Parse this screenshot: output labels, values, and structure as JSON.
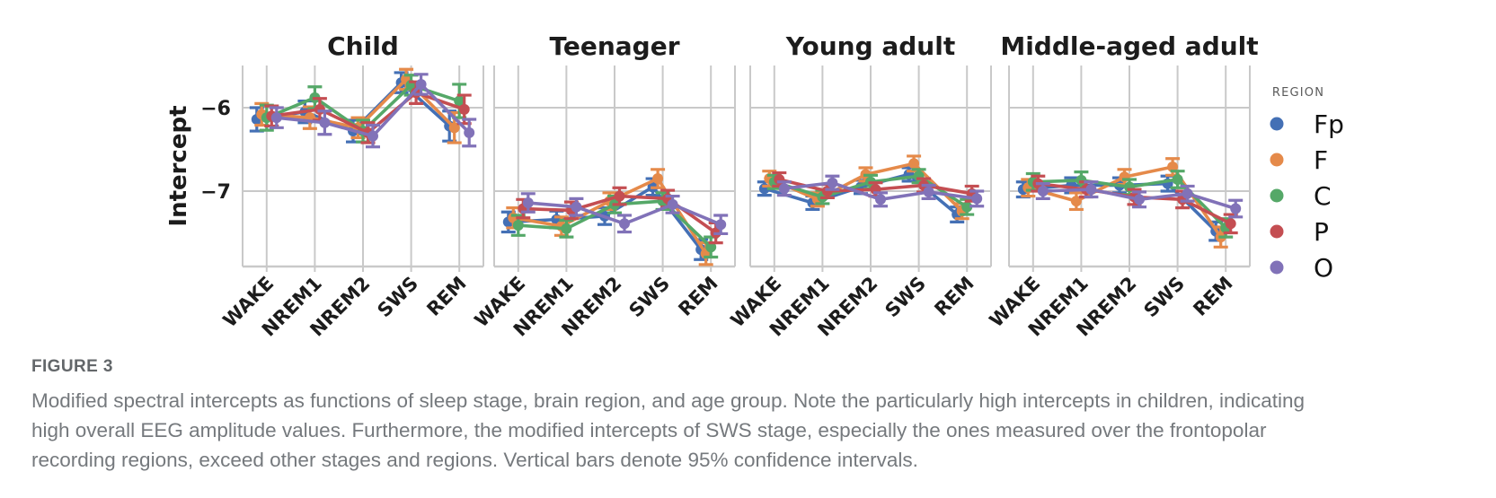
{
  "figure": {
    "label": "FIGURE 3",
    "caption_lines": [
      "Modified spectral intercepts as functions of sleep stage, brain region, and age group. Note the particularly high intercepts in children, indicating",
      "high overall EEG amplitude values. Furthermore, the modified intercepts of SWS stage, especially the ones measured over the frontopolar",
      "recording regions, exceed other stages and regions. Vertical bars denote 95% confidence intervals."
    ]
  },
  "chart_data": {
    "type": "line",
    "subtype": "point-plot-with-error-bars",
    "error_bars": "95% confidence intervals",
    "categories": [
      "WAKE",
      "NREM1",
      "NREM2",
      "SWS",
      "REM"
    ],
    "x_tick_rotation": 45,
    "xlabel": "",
    "ylabel": "Intercept",
    "yticks": [
      "−6",
      "−7"
    ],
    "ytick_values": [
      -6,
      -7
    ],
    "ylim": [
      -7.9,
      -5.5
    ],
    "grid": true,
    "legend": {
      "title": "REGION",
      "position": "right",
      "entries": [
        {
          "label": "Fp",
          "color": "#4470b5"
        },
        {
          "label": "F",
          "color": "#e58a4a"
        },
        {
          "label": "C",
          "color": "#55a868"
        },
        {
          "label": "P",
          "color": "#c44e52"
        },
        {
          "label": "O",
          "color": "#8172b8"
        }
      ]
    },
    "facets": [
      {
        "title": "Child",
        "series": [
          {
            "name": "Fp",
            "values": [
              -6.14,
              -6.05,
              -6.28,
              -5.7,
              -6.22
            ],
            "ci": [
              0.14,
              0.13,
              0.13,
              0.12,
              0.18
            ]
          },
          {
            "name": "F",
            "values": [
              -6.08,
              -6.12,
              -6.24,
              -5.66,
              -6.24
            ],
            "ci": [
              0.13,
              0.13,
              0.12,
              0.12,
              0.18
            ]
          },
          {
            "name": "C",
            "values": [
              -6.12,
              -5.88,
              -6.28,
              -5.73,
              -5.92
            ],
            "ci": [
              0.15,
              0.13,
              0.13,
              0.12,
              0.2
            ]
          },
          {
            "name": "P",
            "values": [
              -6.1,
              -6.02,
              -6.3,
              -5.82,
              -6.02
            ],
            "ci": [
              0.12,
              0.13,
              0.12,
              0.13,
              0.17
            ]
          },
          {
            "name": "O",
            "values": [
              -6.12,
              -6.18,
              -6.34,
              -5.72,
              -6.3
            ],
            "ci": [
              0.12,
              0.14,
              0.13,
              0.12,
              0.16
            ]
          }
        ]
      },
      {
        "title": "Teenager",
        "series": [
          {
            "name": "Fp",
            "values": [
              -7.37,
              -7.34,
              -7.3,
              -6.95,
              -7.7
            ],
            "ci": [
              0.12,
              0.1,
              0.1,
              0.1,
              0.12
            ]
          },
          {
            "name": "F",
            "values": [
              -7.32,
              -7.42,
              -7.12,
              -6.85,
              -7.75
            ],
            "ci": [
              0.12,
              0.11,
              0.1,
              0.11,
              0.13
            ]
          },
          {
            "name": "C",
            "values": [
              -7.41,
              -7.45,
              -7.16,
              -7.12,
              -7.67
            ],
            "ci": [
              0.12,
              0.1,
              0.1,
              0.1,
              0.12
            ]
          },
          {
            "name": "P",
            "values": [
              -7.21,
              -7.23,
              -7.06,
              -7.09,
              -7.5
            ],
            "ci": [
              0.11,
              0.1,
              0.1,
              0.1,
              0.12
            ]
          },
          {
            "name": "O",
            "values": [
              -7.14,
              -7.19,
              -7.39,
              -7.16,
              -7.4
            ],
            "ci": [
              0.11,
              0.1,
              0.1,
              0.1,
              0.11
            ]
          }
        ]
      },
      {
        "title": "Young adult",
        "series": [
          {
            "name": "Fp",
            "values": [
              -6.97,
              -7.14,
              -6.95,
              -6.8,
              -7.28
            ],
            "ci": [
              0.08,
              0.08,
              0.08,
              0.08,
              0.09
            ]
          },
          {
            "name": "F",
            "values": [
              -6.85,
              -7.1,
              -6.8,
              -6.67,
              -7.24
            ],
            "ci": [
              0.09,
              0.08,
              0.08,
              0.09,
              0.09
            ]
          },
          {
            "name": "C",
            "values": [
              -6.89,
              -7.07,
              -6.89,
              -6.82,
              -7.19
            ],
            "ci": [
              0.08,
              0.08,
              0.08,
              0.08,
              0.09
            ]
          },
          {
            "name": "P",
            "values": [
              -6.86,
              -7.0,
              -6.98,
              -6.93,
              -7.03
            ],
            "ci": [
              0.08,
              0.08,
              0.08,
              0.08,
              0.09
            ]
          },
          {
            "name": "O",
            "values": [
              -6.97,
              -6.9,
              -7.1,
              -7.01,
              -7.09
            ],
            "ci": [
              0.08,
              0.08,
              0.08,
              0.08,
              0.09
            ]
          }
        ]
      },
      {
        "title": "Middle-aged adult",
        "series": [
          {
            "name": "Fp",
            "values": [
              -6.98,
              -6.93,
              -6.93,
              -6.91,
              -7.48
            ],
            "ci": [
              0.09,
              0.09,
              0.09,
              0.09,
              0.11
            ]
          },
          {
            "name": "F",
            "values": [
              -6.96,
              -7.12,
              -6.83,
              -6.71,
              -7.55
            ],
            "ci": [
              0.1,
              0.1,
              0.09,
              0.1,
              0.12
            ]
          },
          {
            "name": "C",
            "values": [
              -6.89,
              -6.87,
              -6.95,
              -6.86,
              -7.44
            ],
            "ci": [
              0.1,
              0.1,
              0.09,
              0.1,
              0.11
            ]
          },
          {
            "name": "P",
            "values": [
              -6.91,
              -6.98,
              -7.07,
              -7.1,
              -7.39
            ],
            "ci": [
              0.09,
              0.09,
              0.09,
              0.1,
              0.11
            ]
          },
          {
            "name": "O",
            "values": [
              -7.0,
              -6.98,
              -7.1,
              -7.03,
              -7.21
            ],
            "ci": [
              0.09,
              0.09,
              0.09,
              0.09,
              0.1
            ]
          }
        ]
      }
    ]
  }
}
